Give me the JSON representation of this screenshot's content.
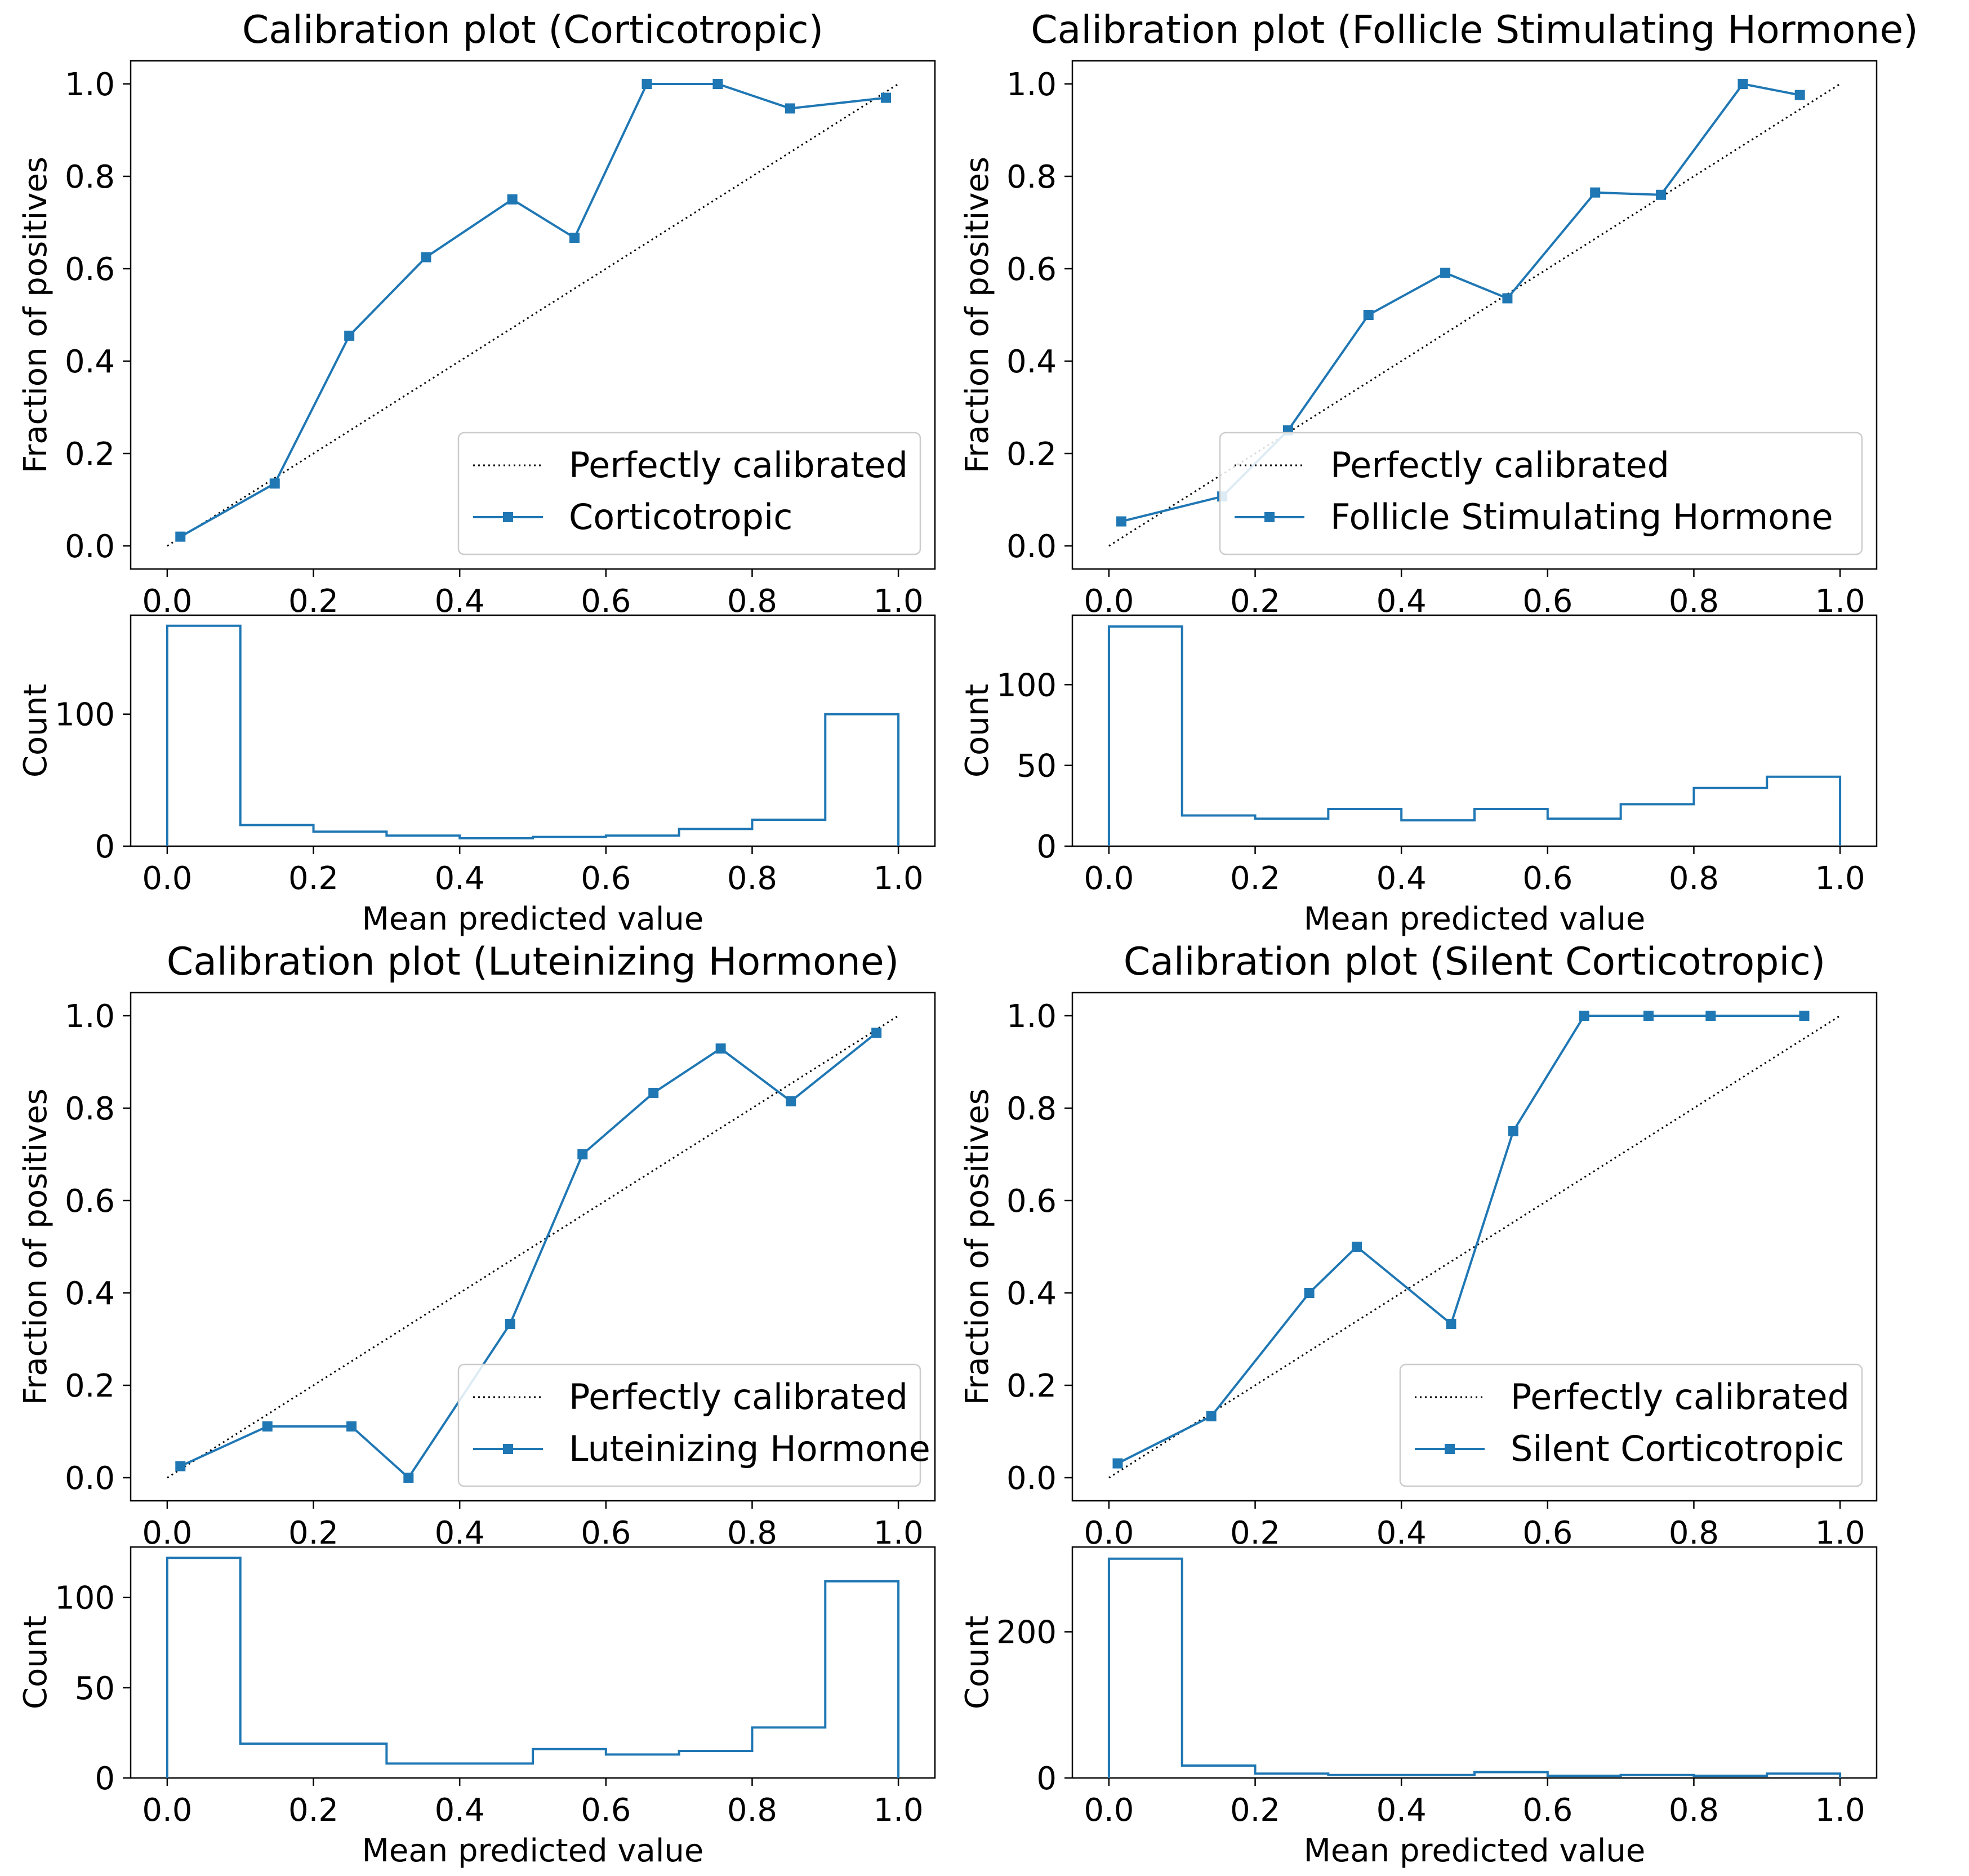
{
  "chart_data": [
    {
      "type": "line",
      "title": "Calibration plot (Corticotropic)",
      "xlabel": "",
      "ylabel": "Fraction of positives",
      "xlim": [
        -0.05,
        1.05
      ],
      "ylim": [
        -0.05,
        1.05
      ],
      "xticks": [
        "0.0",
        "0.2",
        "0.4",
        "0.6",
        "0.8",
        "1.0"
      ],
      "yticks": [
        "0.0",
        "0.2",
        "0.4",
        "0.6",
        "0.8",
        "1.0"
      ],
      "legend_position": "lower-right",
      "color": "#1f77b4",
      "series": [
        {
          "name": "Perfectly calibrated",
          "style": "dotted",
          "x": [
            0,
            1
          ],
          "y": [
            0,
            1
          ]
        },
        {
          "name": "Corticotropic",
          "style": "line-square-markers",
          "x": [
            0.018,
            0.147,
            0.249,
            0.354,
            0.472,
            0.557,
            0.656,
            0.753,
            0.852,
            0.983
          ],
          "y": [
            0.02,
            0.135,
            0.455,
            0.625,
            0.75,
            0.667,
            1.0,
            1.0,
            0.947,
            0.97
          ]
        }
      ],
      "histogram": {
        "type": "histogram",
        "xlabel": "Mean predicted value",
        "ylabel": "Count",
        "bin_edges": [
          0.0,
          0.1,
          0.2,
          0.3,
          0.4,
          0.5,
          0.6,
          0.7,
          0.8,
          0.9,
          1.0
        ],
        "counts": [
          167,
          16,
          11,
          8,
          6,
          7,
          8,
          13,
          20,
          100
        ],
        "xlim": [
          -0.05,
          1.05
        ],
        "ylim": [
          0,
          175
        ],
        "yticks": [
          0,
          100
        ],
        "xticks": [
          "0.0",
          "0.2",
          "0.4",
          "0.6",
          "0.8",
          "1.0"
        ]
      }
    },
    {
      "type": "line",
      "title": "Calibration plot (Follicle Stimulating Hormone)",
      "xlabel": "",
      "ylabel": "Fraction of positives",
      "xlim": [
        -0.05,
        1.05
      ],
      "ylim": [
        -0.05,
        1.05
      ],
      "xticks": [
        "0.0",
        "0.2",
        "0.4",
        "0.6",
        "0.8",
        "1.0"
      ],
      "yticks": [
        "0.0",
        "0.2",
        "0.4",
        "0.6",
        "0.8",
        "1.0"
      ],
      "legend_position": "lower-right",
      "color": "#1f77b4",
      "series": [
        {
          "name": "Perfectly calibrated",
          "style": "dotted",
          "x": [
            0,
            1
          ],
          "y": [
            0,
            1
          ]
        },
        {
          "name": "Follicle Stimulating Hormone",
          "style": "line-square-markers",
          "x": [
            0.017,
            0.155,
            0.245,
            0.355,
            0.46,
            0.545,
            0.665,
            0.755,
            0.867,
            0.945
          ],
          "y": [
            0.053,
            0.107,
            0.25,
            0.5,
            0.591,
            0.536,
            0.765,
            0.76,
            1.0,
            0.976
          ]
        }
      ],
      "histogram": {
        "type": "histogram",
        "xlabel": "Mean predicted value",
        "ylabel": "Count",
        "bin_edges": [
          0.0,
          0.1,
          0.2,
          0.3,
          0.4,
          0.5,
          0.6,
          0.7,
          0.8,
          0.9,
          1.0
        ],
        "counts": [
          136,
          19,
          17,
          23,
          16,
          23,
          17,
          26,
          36,
          43
        ],
        "xlim": [
          -0.05,
          1.05
        ],
        "ylim": [
          0,
          143
        ],
        "yticks": [
          0,
          50,
          100
        ],
        "xticks": [
          "0.0",
          "0.2",
          "0.4",
          "0.6",
          "0.8",
          "1.0"
        ]
      }
    },
    {
      "type": "line",
      "title": "Calibration plot (Luteinizing Hormone)",
      "xlabel": "",
      "ylabel": "Fraction of positives",
      "xlim": [
        -0.05,
        1.05
      ],
      "ylim": [
        -0.05,
        1.05
      ],
      "xticks": [
        "0.0",
        "0.2",
        "0.4",
        "0.6",
        "0.8",
        "1.0"
      ],
      "yticks": [
        "0.0",
        "0.2",
        "0.4",
        "0.6",
        "0.8",
        "1.0"
      ],
      "legend_position": "lower-right",
      "color": "#1f77b4",
      "series": [
        {
          "name": "Perfectly calibrated",
          "style": "dotted",
          "x": [
            0,
            1
          ],
          "y": [
            0,
            1
          ]
        },
        {
          "name": "Luteinizing Hormone",
          "style": "line-square-markers",
          "x": [
            0.018,
            0.137,
            0.252,
            0.33,
            0.469,
            0.568,
            0.665,
            0.757,
            0.853,
            0.97
          ],
          "y": [
            0.025,
            0.111,
            0.111,
            0.0,
            0.333,
            0.7,
            0.833,
            0.929,
            0.815,
            0.963
          ]
        }
      ],
      "histogram": {
        "type": "histogram",
        "xlabel": "Mean predicted value",
        "ylabel": "Count",
        "bin_edges": [
          0.0,
          0.1,
          0.2,
          0.3,
          0.4,
          0.5,
          0.6,
          0.7,
          0.8,
          0.9,
          1.0
        ],
        "counts": [
          122,
          19,
          19,
          8,
          8,
          16,
          13,
          15,
          28,
          109
        ],
        "xlim": [
          -0.05,
          1.05
        ],
        "ylim": [
          0,
          128
        ],
        "yticks": [
          0,
          50,
          100
        ],
        "xticks": [
          "0.0",
          "0.2",
          "0.4",
          "0.6",
          "0.8",
          "1.0"
        ]
      }
    },
    {
      "type": "line",
      "title": "Calibration plot (Silent Corticotropic)",
      "xlabel": "",
      "ylabel": "Fraction of positives",
      "xlim": [
        -0.05,
        1.05
      ],
      "ylim": [
        -0.05,
        1.05
      ],
      "xticks": [
        "0.0",
        "0.2",
        "0.4",
        "0.6",
        "0.8",
        "1.0"
      ],
      "yticks": [
        "0.0",
        "0.2",
        "0.4",
        "0.6",
        "0.8",
        "1.0"
      ],
      "legend_position": "lower-right",
      "color": "#1f77b4",
      "series": [
        {
          "name": "Perfectly calibrated",
          "style": "dotted",
          "x": [
            0,
            1
          ],
          "y": [
            0,
            1
          ]
        },
        {
          "name": "Silent Corticotropic",
          "style": "line-square-markers",
          "x": [
            0.012,
            0.14,
            0.274,
            0.339,
            0.468,
            0.553,
            0.65,
            0.738,
            0.823,
            0.951
          ],
          "y": [
            0.031,
            0.133,
            0.4,
            0.5,
            0.333,
            0.75,
            1.0,
            1.0,
            1.0,
            1.0
          ]
        }
      ],
      "histogram": {
        "type": "histogram",
        "xlabel": "Mean predicted value",
        "ylabel": "Count",
        "bin_edges": [
          0.0,
          0.1,
          0.2,
          0.3,
          0.4,
          0.5,
          0.6,
          0.7,
          0.8,
          0.9,
          1.0
        ],
        "counts": [
          300,
          17,
          6,
          4,
          4,
          8,
          3,
          4,
          3,
          6
        ],
        "xlim": [
          -0.05,
          1.05
        ],
        "ylim": [
          0,
          316
        ],
        "yticks": [
          0,
          200
        ],
        "xticks": [
          "0.0",
          "0.2",
          "0.4",
          "0.6",
          "0.8",
          "1.0"
        ]
      }
    }
  ]
}
